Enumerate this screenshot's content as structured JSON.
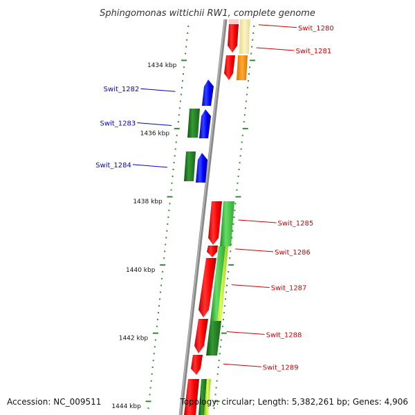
{
  "title": "Sphingomonas wittichii RW1, complete genome",
  "accession": "Accession: NC_009511",
  "topology": "Topology: circular; Length: 5,382,261 bp; Genes: 4,906",
  "colors": {
    "plus_strand_label": "#cc0000",
    "minus_strand_label": "#0000cc",
    "cds_plus": "#ff0000",
    "cds_minus": "#0000ff",
    "backbone": "#888888",
    "tick": "#338833",
    "cog_green": "#44bb44",
    "cog_dark_green": "#227722",
    "cog_yellow_green": "#aaee22",
    "cog_pale_yellow": "#f2e6a0",
    "cog_orange": "#ff9900"
  },
  "scale_labels": [
    {
      "text": "1434 kbp",
      "kbp": 1434
    },
    {
      "text": "1436 kbp",
      "kbp": 1436
    },
    {
      "text": "1438 kbp",
      "kbp": 1438
    },
    {
      "text": "1440 kbp",
      "kbp": 1440
    },
    {
      "text": "1442 kbp",
      "kbp": 1442
    },
    {
      "text": "1444 kbp",
      "kbp": 1444
    }
  ],
  "genes": [
    {
      "name": "Swit_1280",
      "strand": "+",
      "start_kbp": 1432.5,
      "end_kbp": 1433.3
    },
    {
      "name": "Swit_1281",
      "strand": "+",
      "start_kbp": 1433.35,
      "end_kbp": 1433.8
    },
    {
      "name": "Swit_1282",
      "strand": "-",
      "start_kbp": 1434.4,
      "end_kbp": 1435.15
    },
    {
      "name": "Swit_1283",
      "strand": "-",
      "start_kbp": 1435.35,
      "end_kbp": 1436.2
    },
    {
      "name": "Swit_1284",
      "strand": "-",
      "start_kbp": 1436.6,
      "end_kbp": 1437.4
    },
    {
      "name": "Swit_1285",
      "strand": "+",
      "start_kbp": 1437.95,
      "end_kbp": 1439.3
    },
    {
      "name": "Swit_1286",
      "strand": "+",
      "start_kbp": 1439.3,
      "end_kbp": 1439.65
    },
    {
      "name": "Swit_1287",
      "strand": "+",
      "start_kbp": 1439.65,
      "end_kbp": 1441.4
    },
    {
      "name": "Swit_1288",
      "strand": "+",
      "start_kbp": 1441.4,
      "end_kbp": 1442.4
    },
    {
      "name": "Swit_1289",
      "strand": "+",
      "start_kbp": 1442.5,
      "end_kbp": 1443.2
    }
  ]
}
